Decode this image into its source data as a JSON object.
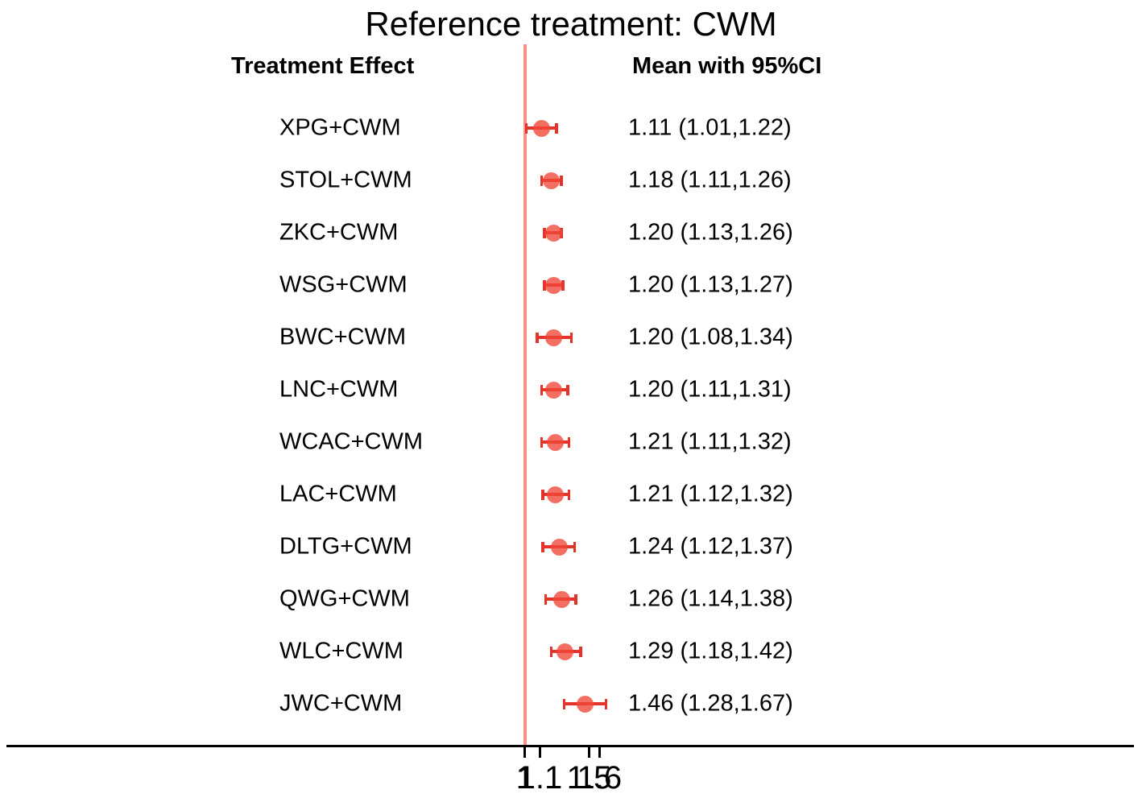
{
  "title": "Reference treatment: CWM",
  "headers": {
    "left": "Treatment Effect",
    "right": "Mean with 95%CI"
  },
  "colors": {
    "reference_line": "#f89287",
    "error_bar": "#e6332a",
    "marker_fill": "#ef4638",
    "axis_line": "#000000",
    "text": "#000000"
  },
  "chart_data": {
    "type": "scatter",
    "subtype": "forest-plot",
    "title": "Reference treatment: CWM",
    "x_scale": "log",
    "reference_value": 1,
    "x_tick_labels": [
      "1",
      "1.1",
      "1.5",
      "1.6"
    ],
    "x_tick_values": [
      1,
      1.1,
      1.5,
      1.6
    ],
    "x_range": [
      0.95,
      1.75
    ],
    "grid": false,
    "legend": false,
    "rows": [
      {
        "treatment": "XPG+CWM",
        "mean": 1.11,
        "lower": 1.01,
        "upper": 1.22,
        "ci_text": "1.11 (1.01,1.22)"
      },
      {
        "treatment": "STOL+CWM",
        "mean": 1.18,
        "lower": 1.11,
        "upper": 1.26,
        "ci_text": "1.18 (1.11,1.26)"
      },
      {
        "treatment": "ZKC+CWM",
        "mean": 1.2,
        "lower": 1.13,
        "upper": 1.26,
        "ci_text": "1.20 (1.13,1.26)"
      },
      {
        "treatment": "WSG+CWM",
        "mean": 1.2,
        "lower": 1.13,
        "upper": 1.27,
        "ci_text": "1.20 (1.13,1.27)"
      },
      {
        "treatment": "BWC+CWM",
        "mean": 1.2,
        "lower": 1.08,
        "upper": 1.34,
        "ci_text": "1.20 (1.08,1.34)"
      },
      {
        "treatment": "LNC+CWM",
        "mean": 1.2,
        "lower": 1.11,
        "upper": 1.31,
        "ci_text": "1.20 (1.11,1.31)"
      },
      {
        "treatment": "WCAC+CWM",
        "mean": 1.21,
        "lower": 1.11,
        "upper": 1.32,
        "ci_text": "1.21 (1.11,1.32)"
      },
      {
        "treatment": "LAC+CWM",
        "mean": 1.21,
        "lower": 1.12,
        "upper": 1.32,
        "ci_text": "1.21 (1.12,1.32)"
      },
      {
        "treatment": "DLTG+CWM",
        "mean": 1.24,
        "lower": 1.12,
        "upper": 1.37,
        "ci_text": "1.24 (1.12,1.37)"
      },
      {
        "treatment": "QWG+CWM",
        "mean": 1.26,
        "lower": 1.14,
        "upper": 1.38,
        "ci_text": "1.26 (1.14,1.38)"
      },
      {
        "treatment": "WLC+CWM",
        "mean": 1.29,
        "lower": 1.18,
        "upper": 1.42,
        "ci_text": "1.29 (1.18,1.42)"
      },
      {
        "treatment": "JWC+CWM",
        "mean": 1.46,
        "lower": 1.28,
        "upper": 1.67,
        "ci_text": "1.46 (1.28,1.67)"
      }
    ]
  }
}
